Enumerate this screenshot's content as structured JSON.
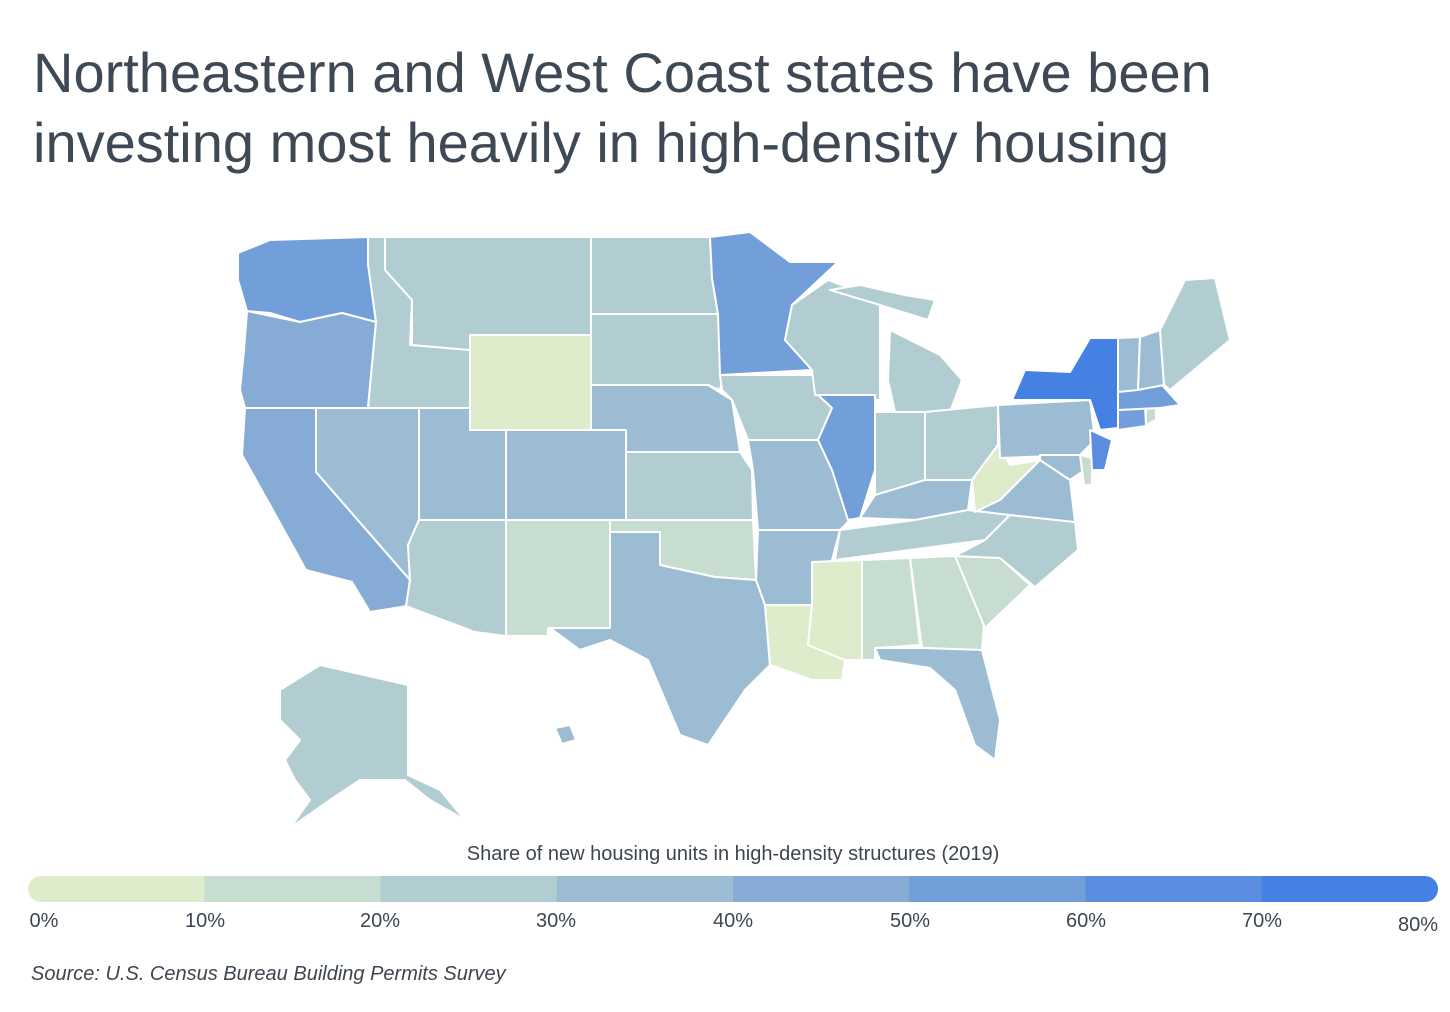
{
  "title_lines": [
    "Northeastern and West Coast states have been",
    "investing most heavily in high-density housing"
  ],
  "legend": {
    "title": "Share of new housing units in high-density structures (2019)",
    "ticks": [
      "0%",
      "10%",
      "20%",
      "30%",
      "40%",
      "50%",
      "60%",
      "70%",
      "80%"
    ],
    "colors": [
      "#deeccb",
      "#c6ddd0",
      "#b1cdd1",
      "#9cbcd3",
      "#86acd5",
      "#729ed9",
      "#5a8ddf",
      "#4580e3"
    ]
  },
  "source": "Source: U.S. Census Bureau Building Permits Survey",
  "states": {
    "WA": 5,
    "OR": 4,
    "CA": 4,
    "NV": 3,
    "ID": 2,
    "MT": 2,
    "WY": 0,
    "UT": 3,
    "AZ": 2,
    "CO": 3,
    "NM": 1,
    "ND": 2,
    "SD": 2,
    "NE": 3,
    "KS": 2,
    "OK": 1,
    "TX": 3,
    "MN": 5,
    "IA": 2,
    "MO": 3,
    "AR": 3,
    "LA": 0,
    "WI": 2,
    "IL": 5,
    "MI": 2,
    "IN": 2,
    "OH": 2,
    "KY": 3,
    "TN": 2,
    "MS": 0,
    "AL": 1,
    "GA": 1,
    "FL": 3,
    "SC": 1,
    "NC": 2,
    "VA": 3,
    "WV": 0,
    "PA": 3,
    "NY": 7,
    "NJ": 6,
    "DE": 1,
    "MD": 3,
    "CT": 5,
    "RI": 1,
    "MA": 5,
    "VT": 3,
    "NH": 3,
    "ME": 2,
    "AK": 2,
    "HI": 3
  }
}
